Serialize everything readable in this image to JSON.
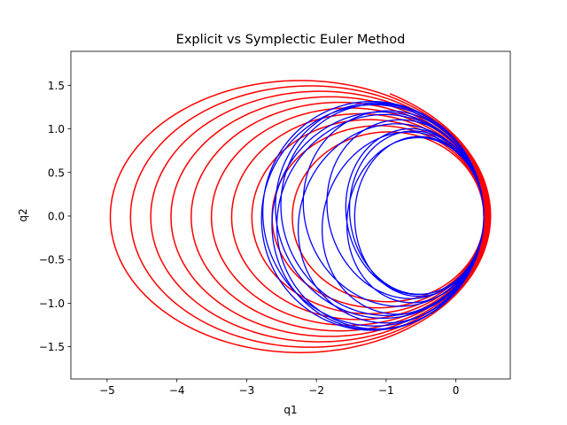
{
  "chart_data": {
    "type": "line",
    "title": "Explicit vs Symplectic Euler Method",
    "xlabel": "q1",
    "ylabel": "q2",
    "xlim": [
      -5.52,
      0.78
    ],
    "ylim": [
      -1.87,
      1.89
    ],
    "xticks": [
      -5,
      -4,
      -3,
      -2,
      -1,
      0
    ],
    "xtick_labels": [
      "−5",
      "−4",
      "−3",
      "−2",
      "−1",
      "0"
    ],
    "yticks": [
      -1.5,
      -1.0,
      -0.5,
      0.0,
      0.5,
      1.0,
      1.5
    ],
    "ytick_labels": [
      "−1.5",
      "−1.0",
      "−0.5",
      "0.0",
      "0.5",
      "1.0",
      "1.5"
    ],
    "grid": false,
    "legend": "none",
    "series": [
      {
        "method": "explicit",
        "color": "#ff0000",
        "description": "outward spiral, orbits with perihelion ~0.4, aphelion growing from ~-2.2 to ~-5.2",
        "perihelion_start": 0.4,
        "perihelion_end": 0.5,
        "aphelion_start": -2.2,
        "aphelion_end": -5.2,
        "orbits": 10,
        "end_point": [
          -5.18,
          1.03
        ],
        "end_angle_deg": 124
      },
      {
        "method": "symplectic",
        "color": "#0000ff",
        "description": "precessing bounded orbits between circle centered (-0.6,0) r~0.8 and ellipse reaching q1~-2.8",
        "orbits": 14,
        "end_point": [
          -2.15,
          -0.87
        ]
      }
    ]
  }
}
